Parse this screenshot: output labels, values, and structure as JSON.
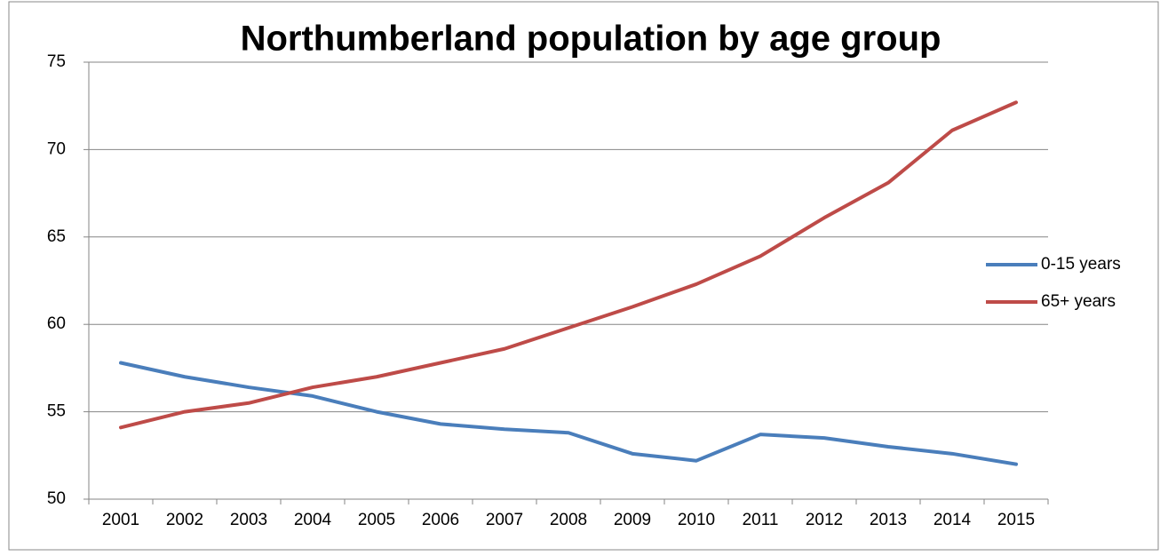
{
  "chart_data": {
    "type": "line",
    "title": "Northumberland population by age group",
    "categories": [
      "2001",
      "2002",
      "2003",
      "2004",
      "2005",
      "2006",
      "2007",
      "2008",
      "2009",
      "2010",
      "2011",
      "2012",
      "2013",
      "2014",
      "2015"
    ],
    "series": [
      {
        "name": "0-15 years",
        "color": "#4a7ebb",
        "values": [
          57.8,
          57.0,
          56.4,
          55.9,
          55.0,
          54.3,
          54.0,
          53.8,
          52.6,
          52.2,
          53.7,
          53.5,
          53.0,
          52.6,
          52.0
        ]
      },
      {
        "name": "65+ years",
        "color": "#be4b48",
        "values": [
          54.1,
          55.0,
          55.5,
          56.4,
          57.0,
          57.8,
          58.6,
          59.8,
          61.0,
          62.3,
          63.9,
          66.1,
          68.1,
          71.1,
          72.7
        ]
      }
    ],
    "ylim": [
      50,
      75
    ],
    "yticks": [
      50,
      55,
      60,
      65,
      70,
      75
    ],
    "grid": true,
    "legend": "right"
  }
}
